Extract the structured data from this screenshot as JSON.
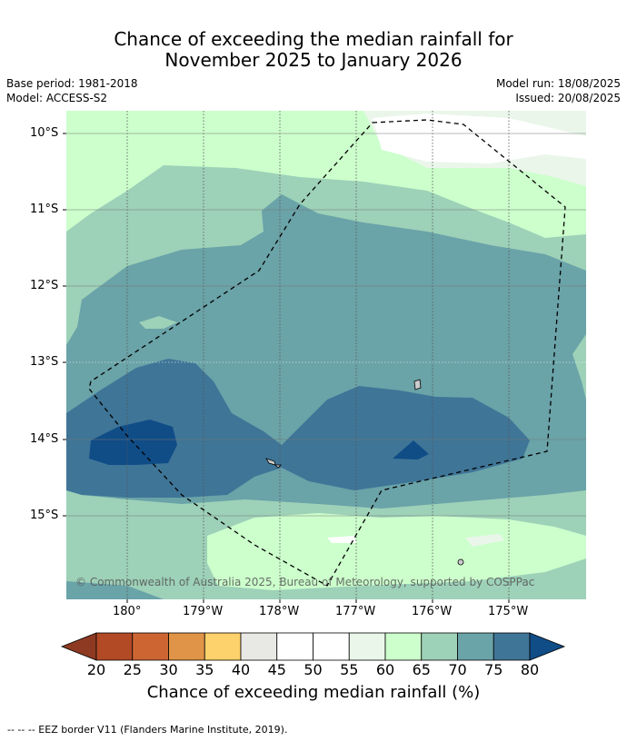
{
  "title": {
    "line1": "Chance of exceeding the median rainfall for",
    "line2": "November 2025 to January 2026"
  },
  "meta": {
    "base_period": "Base period: 1981-2018",
    "model": "Model: ACCESS-S2",
    "model_run": "Model run: 18/08/2025",
    "issued": "Issued: 20/08/2025"
  },
  "map": {
    "lat_labels": [
      "10°S",
      "11°S",
      "12°S",
      "13°S",
      "14°S",
      "15°S"
    ],
    "lon_labels": [
      "180°",
      "179°W",
      "178°W",
      "177°W",
      "176°W",
      "175°W"
    ],
    "copyright": "© Commonwealth of Australia 2025, Bureau of Meteorology, supported by COSPPac"
  },
  "colorbar": {
    "ticks": [
      "20",
      "25",
      "30",
      "35",
      "40",
      "45",
      "50",
      "55",
      "60",
      "65",
      "70",
      "75",
      "80"
    ],
    "colors": [
      "#8e3a22",
      "#b24a26",
      "#cd6533",
      "#e09448",
      "#fdd16b",
      "#e8e8e4",
      "#ffffff",
      "#ffffff",
      "#eaf6ea",
      "#ccffcc",
      "#9dd1b8",
      "#6aa3a8",
      "#3f7597",
      "#104d87"
    ],
    "title": "Chance of exceeding median rainfall (%)"
  },
  "footer": "-- -- -- EEZ border V11 (Flanders Marine Institute, 2019)."
}
